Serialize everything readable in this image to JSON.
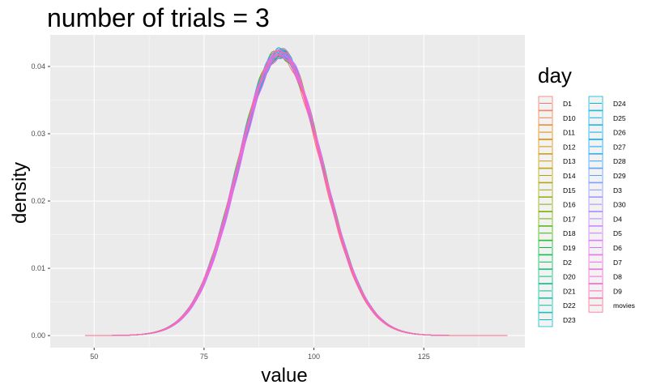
{
  "chart_data": {
    "type": "line",
    "title": "number of trials = 3",
    "xlabel": "value",
    "ylabel": "density",
    "xlim": [
      40,
      148
    ],
    "ylim": [
      -0.0018,
      0.0447
    ],
    "x_ticks": [
      50,
      75,
      100,
      125
    ],
    "y_ticks": [
      0.0,
      0.01,
      0.02,
      0.03,
      0.04
    ],
    "y_tick_labels": [
      "0.00",
      "0.01",
      "0.02",
      "0.03",
      "0.04"
    ],
    "grid": true,
    "background": "#ebebeb",
    "legend": {
      "title": "day",
      "position": "right",
      "columns": 2
    },
    "distribution": {
      "shape": "normal",
      "mean": 92.4,
      "sd": 9.55,
      "peak_density": 0.042,
      "x_range": [
        48,
        144
      ]
    },
    "series": [
      {
        "name": "D1",
        "color": "#F8766D"
      },
      {
        "name": "D10",
        "color": "#F17F44"
      },
      {
        "name": "D11",
        "color": "#E58700"
      },
      {
        "name": "D12",
        "color": "#D89000"
      },
      {
        "name": "D13",
        "color": "#C99800"
      },
      {
        "name": "D14",
        "color": "#B79F00"
      },
      {
        "name": "D15",
        "color": "#A3A500"
      },
      {
        "name": "D16",
        "color": "#8BAB00"
      },
      {
        "name": "D17",
        "color": "#6BB100"
      },
      {
        "name": "D18",
        "color": "#39B600"
      },
      {
        "name": "D19",
        "color": "#00BA38"
      },
      {
        "name": "D2",
        "color": "#00BD5C"
      },
      {
        "name": "D20",
        "color": "#00BF7D"
      },
      {
        "name": "D21",
        "color": "#00C097"
      },
      {
        "name": "D22",
        "color": "#00C0AF"
      },
      {
        "name": "D23",
        "color": "#00BEC5"
      },
      {
        "name": "D24",
        "color": "#00BBDA"
      },
      {
        "name": "D25",
        "color": "#00B7EA"
      },
      {
        "name": "D26",
        "color": "#00B0F6"
      },
      {
        "name": "D27",
        "color": "#00A9FF"
      },
      {
        "name": "D28",
        "color": "#35A2FF"
      },
      {
        "name": "D29",
        "color": "#619CFF"
      },
      {
        "name": "D3",
        "color": "#8994FF"
      },
      {
        "name": "D30",
        "color": "#A58AFF"
      },
      {
        "name": "D4",
        "color": "#BF80FF"
      },
      {
        "name": "D5",
        "color": "#D376FF"
      },
      {
        "name": "D6",
        "color": "#E46CF6"
      },
      {
        "name": "D7",
        "color": "#F066E9"
      },
      {
        "name": "D8",
        "color": "#FA62DB"
      },
      {
        "name": "D9",
        "color": "#FF62BC"
      },
      {
        "name": "movies",
        "color": "#FF6C91"
      }
    ]
  }
}
